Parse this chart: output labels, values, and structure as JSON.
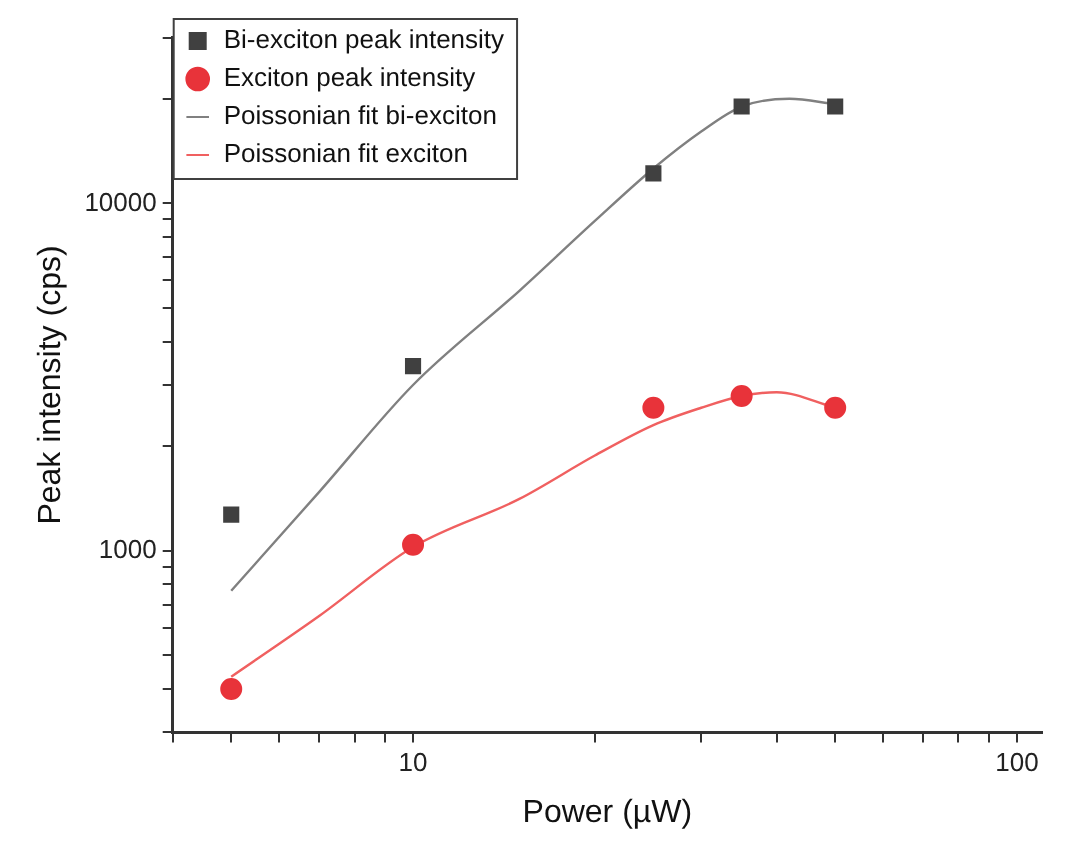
{
  "chart_data": {
    "type": "scatter",
    "xlabel": "Power (µW)",
    "ylabel": "Peak intensity (cps)",
    "log": "xy",
    "grid": false,
    "legend": "top left",
    "xlim": [
      4,
      110
    ],
    "ylim": [
      300,
      30000
    ],
    "xticks": [
      {
        "value": 4,
        "label": null
      },
      {
        "value": 5,
        "label": null
      },
      {
        "value": 6,
        "label": null
      },
      {
        "value": 7,
        "label": null
      },
      {
        "value": 8,
        "label": null
      },
      {
        "value": 9,
        "label": null
      },
      10,
      {
        "value": 20,
        "label": null
      },
      {
        "value": 30,
        "label": null
      },
      {
        "value": 40,
        "label": null
      },
      {
        "value": 50,
        "label": null
      },
      {
        "value": 60,
        "label": null
      },
      {
        "value": 70,
        "label": null
      },
      {
        "value": 80,
        "label": null
      },
      {
        "value": 90,
        "label": null
      },
      100
    ],
    "yticks": [
      {
        "value": 300,
        "label": null
      },
      {
        "value": 400,
        "label": null
      },
      {
        "value": 500,
        "label": null
      },
      {
        "value": 600,
        "label": null
      },
      {
        "value": 700,
        "label": null
      },
      {
        "value": 800,
        "label": null
      },
      {
        "value": 900,
        "label": null
      },
      1000,
      {
        "value": 2000,
        "label": null
      },
      {
        "value": 3000,
        "label": null
      },
      {
        "value": 4000,
        "label": null
      },
      {
        "value": 5000,
        "label": null
      },
      {
        "value": 6000,
        "label": null
      },
      {
        "value": 7000,
        "label": null
      },
      {
        "value": 8000,
        "label": null
      },
      {
        "value": 9000,
        "label": null
      },
      10000,
      {
        "value": 20000,
        "label": null
      },
      {
        "value": 30000,
        "label": null
      }
    ],
    "series": [
      {
        "name": "Bi-exciton peak intensity",
        "marker": "square",
        "color": "#404040",
        "x": [
          5,
          10,
          25,
          35,
          50
        ],
        "values": [
          1270,
          3400,
          12200,
          19000,
          19000
        ]
      },
      {
        "name": "Exciton peak intensity",
        "marker": "circle",
        "color": "#e8333a",
        "x": [
          5,
          10,
          25,
          35,
          50
        ],
        "values": [
          400,
          1040,
          2580,
          2790,
          2580
        ]
      },
      {
        "name": "Poissonian fit bi-exciton",
        "type": "line",
        "marker": "none",
        "color": "#808080",
        "x": [
          5,
          7,
          10,
          15,
          20,
          25,
          30,
          35,
          42,
          50
        ],
        "values": [
          767,
          1480,
          3000,
          5600,
          8900,
          12600,
          16100,
          19000,
          20000,
          19300
        ]
      },
      {
        "name": "Poissonian fit exciton",
        "type": "line",
        "marker": "none",
        "color": "#f06060",
        "x": [
          5,
          7,
          10,
          15,
          20,
          25,
          30,
          35,
          40,
          50
        ],
        "values": [
          434,
          650,
          1025,
          1410,
          1880,
          2300,
          2580,
          2790,
          2860,
          2580
        ]
      }
    ]
  }
}
